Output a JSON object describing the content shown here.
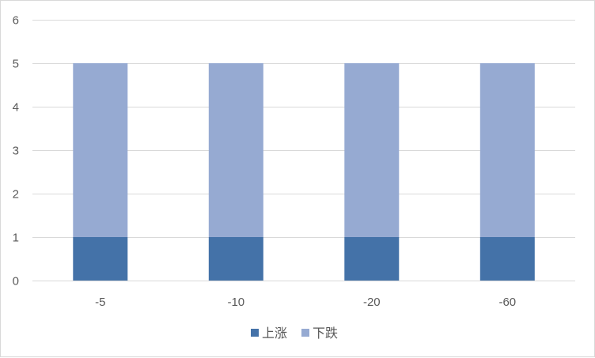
{
  "chart_data": {
    "type": "bar",
    "stacked": true,
    "categories": [
      "-5",
      "-10",
      "-20",
      "-60"
    ],
    "series": [
      {
        "name": "上涨",
        "values": [
          1,
          1,
          1,
          1
        ],
        "color": "#4472a8"
      },
      {
        "name": "下跌",
        "values": [
          4,
          4,
          4,
          4
        ],
        "color": "#96aad2"
      }
    ],
    "ylim": [
      0,
      6
    ],
    "yticks": [
      "0",
      "1",
      "2",
      "3",
      "4",
      "5",
      "6"
    ],
    "grid": true,
    "legend_position": "bottom",
    "gridline_color": "#d9d9d9"
  }
}
